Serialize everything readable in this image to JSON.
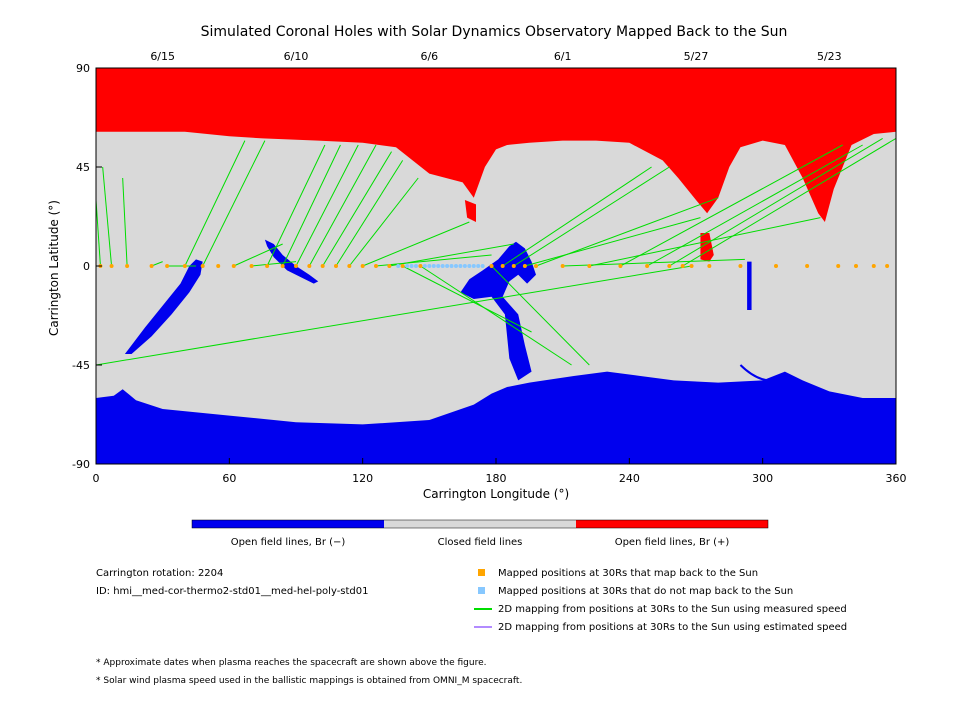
{
  "chart_data": {
    "type": "map",
    "title": "Simulated Coronal Holes with Solar Dynamics Observatory Mapped Back to the Sun",
    "xlabel": "Carrington Longitude (°)",
    "ylabel": "Carrington Latitude (°)",
    "xlim": [
      0,
      360
    ],
    "ylim": [
      -90,
      90
    ],
    "x_ticks": [
      0,
      60,
      120,
      180,
      240,
      300,
      360
    ],
    "y_ticks": [
      90,
      45,
      0,
      -45,
      -90
    ],
    "top_axis": {
      "ticks": [
        {
          "label": "6/15",
          "lon": 30
        },
        {
          "label": "6/10",
          "lon": 90
        },
        {
          "label": "6/6",
          "lon": 150
        },
        {
          "label": "6/1",
          "lon": 210
        },
        {
          "label": "5/27",
          "lon": 270
        },
        {
          "label": "5/23",
          "lon": 330
        }
      ]
    },
    "colorbar": [
      {
        "label": "Open field lines, Br (−)",
        "color": "#0000ee"
      },
      {
        "label": "Closed field lines",
        "color": "#d9d9d9"
      },
      {
        "label": "Open field lines, Br (+)",
        "color": "#ff0000"
      }
    ],
    "north_boundary": [
      [
        0,
        61
      ],
      [
        20,
        61
      ],
      [
        40,
        61
      ],
      [
        60,
        59
      ],
      [
        75,
        58
      ],
      [
        100,
        57
      ],
      [
        120,
        56
      ],
      [
        135,
        54
      ],
      [
        150,
        42
      ],
      [
        165,
        38
      ],
      [
        170,
        31
      ],
      [
        175,
        45
      ],
      [
        180,
        53
      ],
      [
        185,
        55
      ],
      [
        195,
        56
      ],
      [
        210,
        57
      ],
      [
        225,
        57
      ],
      [
        240,
        56
      ],
      [
        255,
        48
      ],
      [
        262,
        40
      ],
      [
        270,
        30
      ],
      [
        275,
        24
      ],
      [
        280,
        31
      ],
      [
        285,
        45
      ],
      [
        290,
        54
      ],
      [
        300,
        57
      ],
      [
        310,
        55
      ],
      [
        318,
        40
      ],
      [
        325,
        24
      ],
      [
        328,
        20
      ],
      [
        332,
        35
      ],
      [
        340,
        55
      ],
      [
        350,
        60
      ],
      [
        360,
        61
      ]
    ],
    "south_boundary": [
      [
        0,
        -60
      ],
      [
        8,
        -59
      ],
      [
        12,
        -56
      ],
      [
        18,
        -61
      ],
      [
        30,
        -65
      ],
      [
        60,
        -68
      ],
      [
        90,
        -71
      ],
      [
        120,
        -72
      ],
      [
        150,
        -70
      ],
      [
        170,
        -63
      ],
      [
        178,
        -58
      ],
      [
        185,
        -55
      ],
      [
        195,
        -53
      ],
      [
        215,
        -50
      ],
      [
        230,
        -48
      ],
      [
        245,
        -50
      ],
      [
        260,
        -52
      ],
      [
        280,
        -53
      ],
      [
        300,
        -52
      ],
      [
        310,
        -48
      ],
      [
        318,
        -52
      ],
      [
        330,
        -57
      ],
      [
        345,
        -60
      ],
      [
        360,
        -60
      ]
    ],
    "orbit_lat": 0,
    "mapped_positions_lon": [
      2,
      7,
      14,
      25,
      32,
      40,
      48,
      55,
      62,
      70,
      77,
      84,
      90,
      96,
      102,
      108,
      114,
      120,
      126,
      132,
      138,
      146,
      178,
      183,
      188,
      193,
      198,
      210,
      222,
      236,
      248,
      258,
      264,
      268,
      276,
      290,
      306,
      320,
      334,
      342,
      350,
      356
    ],
    "unmapped_positions_lon": [
      140,
      150,
      160,
      170
    ],
    "legend": [
      {
        "label": "Mapped positions at 30Rs that map back to the Sun",
        "color": "#ffa500"
      },
      {
        "label": "Mapped positions at 30Rs that do not map back to the Sun",
        "color": "#87c8ff"
      },
      {
        "label": "2D mapping from positions at 30Rs to the Sun using measured speed",
        "color": "#00dd00"
      },
      {
        "label": "2D mapping from positions at 30Rs to the Sun using estimated speed",
        "color": "#b28bff"
      }
    ]
  },
  "info": {
    "rotation": "Carrington rotation: 2204",
    "id": "ID: hmi__med-cor-thermo2-std01__med-hel-poly-std01"
  },
  "notes": [
    "* Approximate dates when plasma reaches the spacecraft are shown above the figure.",
    "* Solar wind plasma speed used in the ballistic mappings is obtained from OMNI_M spacecraft."
  ],
  "colors": {
    "open_negative": "#0000ee",
    "closed": "#d9d9d9",
    "open_positive": "#ff0000",
    "mapped": "#ffa500",
    "unmapped": "#87c8ff",
    "measured_line": "#00dd00",
    "estimated_line": "#b28bff"
  }
}
